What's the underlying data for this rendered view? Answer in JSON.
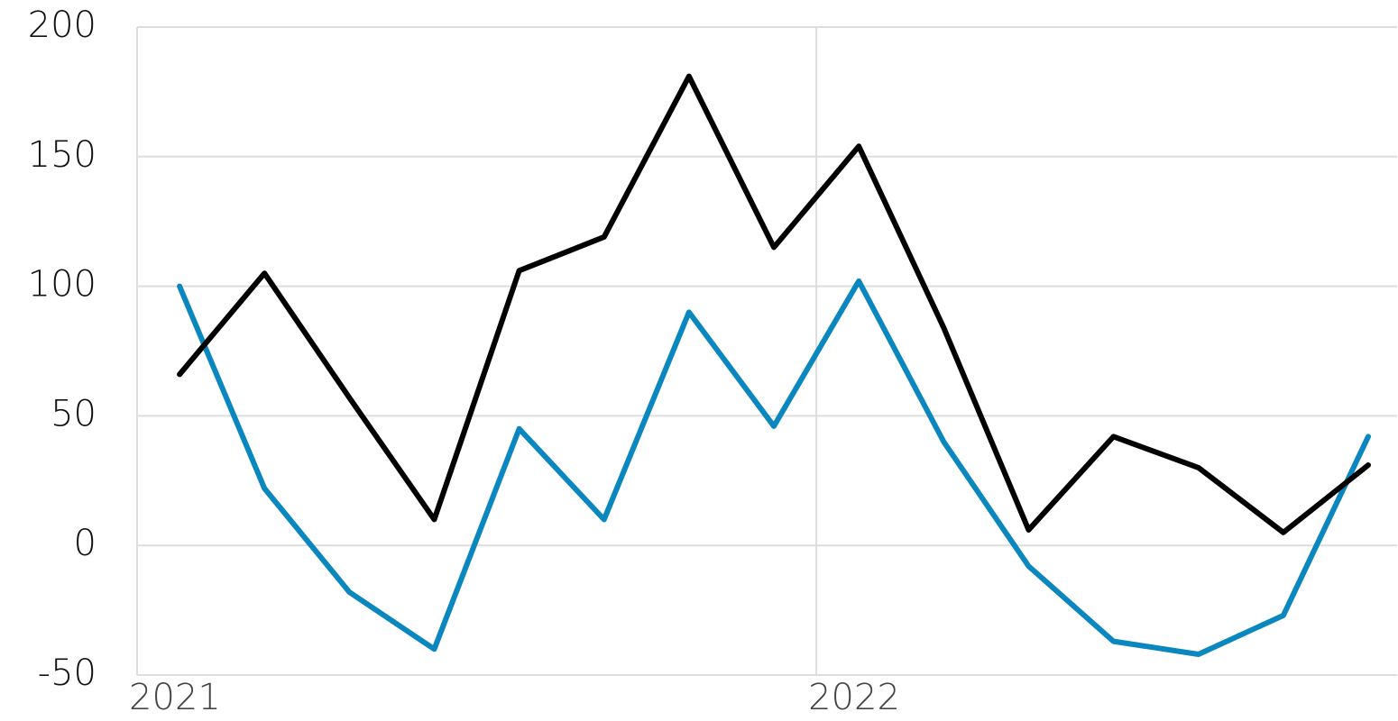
{
  "chart_data": {
    "type": "line",
    "x": [
      2021.0625,
      2021.1875,
      2021.3125,
      2021.4375,
      2021.5625,
      2021.6875,
      2021.8125,
      2021.9375,
      2022.0625,
      2022.1875,
      2022.3125,
      2022.4375,
      2022.5625,
      2022.6875,
      2022.8125
    ],
    "series": [
      {
        "color": "#0a87bf",
        "values": [
          100,
          22,
          -18,
          -40,
          45,
          10,
          90,
          46,
          102,
          40,
          -8,
          -37,
          -42,
          -27,
          42
        ]
      },
      {
        "color": "#000000",
        "values": [
          66,
          105,
          57,
          10,
          106,
          119,
          181,
          115,
          154,
          84,
          6,
          42,
          30,
          5,
          31
        ]
      }
    ],
    "xlim": [
      2021,
      2022.855
    ],
    "xticks": [
      2021,
      2022
    ],
    "ylim": [
      -50,
      200
    ],
    "yticks": [
      -50,
      0,
      50,
      100,
      150,
      200
    ],
    "grid": true
  }
}
